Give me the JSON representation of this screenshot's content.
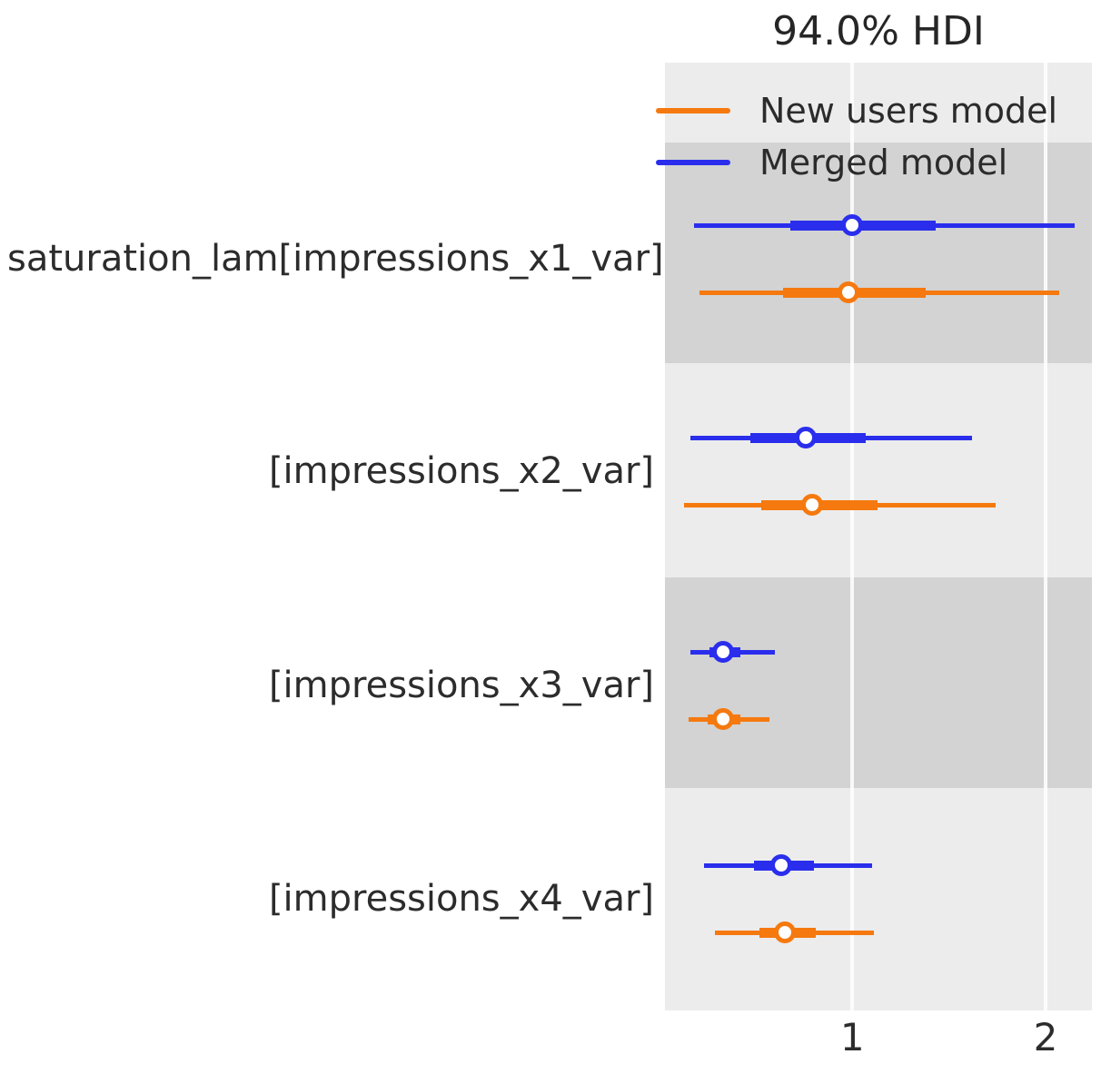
{
  "title": "94.0% HDI",
  "legend": {
    "items": [
      {
        "label": "New users model",
        "color": "#f5790f"
      },
      {
        "label": "Merged model",
        "color": "#2a2eec"
      }
    ]
  },
  "x_axis": {
    "tick_labels": [
      "1",
      "2"
    ]
  },
  "chart_data": {
    "type": "forest",
    "title": "94.0% HDI",
    "hdi_prob": 0.94,
    "xlabel": "",
    "xlim": [
      0.03,
      2.24
    ],
    "xticks": [
      1,
      2
    ],
    "grid": "vertical-white-gridlines-on-gray",
    "band_shading": "alternating-rows",
    "legend_position": "upper-left-inside",
    "parameters": [
      "saturation_lam[impressions_x1_var]",
      "[impressions_x2_var]",
      "[impressions_x3_var]",
      "[impressions_x4_var]"
    ],
    "series": [
      {
        "name": "New users model",
        "color": "#f5790f",
        "intervals": [
          {
            "hdi": [
              0.21,
              2.07
            ],
            "iqr": [
              0.64,
              1.38
            ],
            "median": 0.98
          },
          {
            "hdi": [
              0.13,
              1.74
            ],
            "iqr": [
              0.53,
              1.13
            ],
            "median": 0.79
          },
          {
            "hdi": [
              0.15,
              0.57
            ],
            "iqr": [
              0.25,
              0.42
            ],
            "median": 0.33
          },
          {
            "hdi": [
              0.29,
              1.11
            ],
            "iqr": [
              0.52,
              0.81
            ],
            "median": 0.65
          }
        ]
      },
      {
        "name": "Merged model",
        "color": "#2a2eec",
        "intervals": [
          {
            "hdi": [
              0.18,
              2.15
            ],
            "iqr": [
              0.68,
              1.43
            ],
            "median": 1.0
          },
          {
            "hdi": [
              0.16,
              1.62
            ],
            "iqr": [
              0.47,
              1.07
            ],
            "median": 0.76
          },
          {
            "hdi": [
              0.16,
              0.6
            ],
            "iqr": [
              0.26,
              0.42
            ],
            "median": 0.33
          },
          {
            "hdi": [
              0.23,
              1.1
            ],
            "iqr": [
              0.49,
              0.8
            ],
            "median": 0.63
          }
        ]
      }
    ]
  }
}
